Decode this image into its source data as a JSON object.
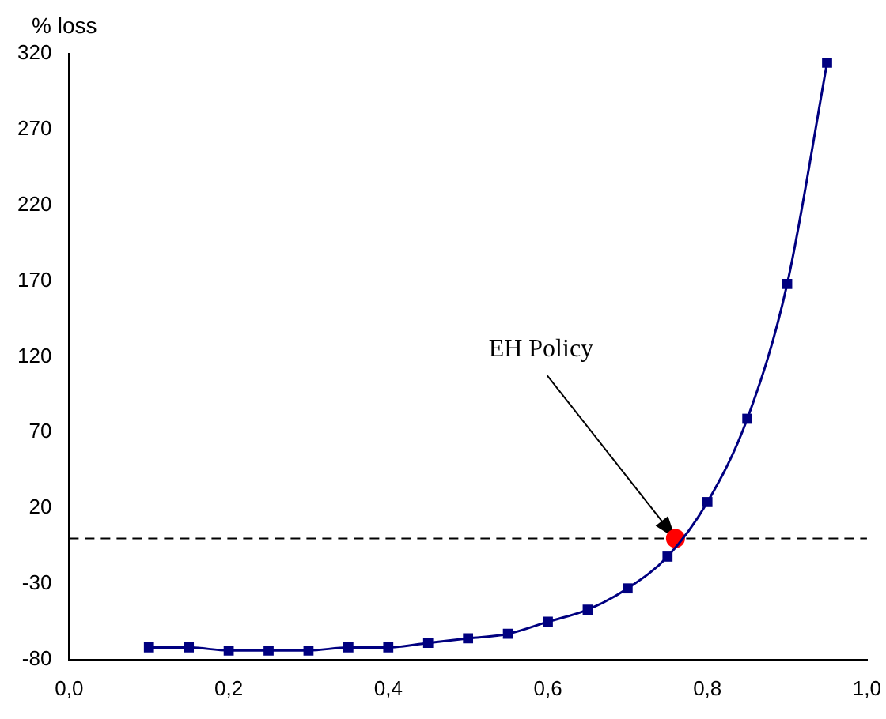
{
  "chart_data": {
    "type": "line",
    "ylabel": "% loss",
    "x": [
      0.1,
      0.15,
      0.2,
      0.25,
      0.3,
      0.35,
      0.4,
      0.45,
      0.5,
      0.55,
      0.6,
      0.65,
      0.7,
      0.75,
      0.8,
      0.85,
      0.9,
      0.95
    ],
    "series": [
      {
        "type": "line",
        "color": "#000080",
        "marker": "square",
        "values": [
          -72,
          -72,
          -74,
          -74,
          -74,
          -72,
          -72,
          -69,
          -66,
          -63,
          -55,
          -47,
          -33,
          -12,
          24,
          79,
          168,
          314
        ]
      },
      {
        "type": "scatter",
        "color": "#ff0000",
        "marker": "circle",
        "x": [
          0.76
        ],
        "values": [
          0
        ]
      }
    ],
    "xlim": [
      0,
      1
    ],
    "xticks": [
      {
        "value": 0,
        "label": "0,0"
      },
      {
        "value": 0.2,
        "label": "0,2"
      },
      {
        "value": 0.4,
        "label": "0,4"
      },
      {
        "value": 0.6,
        "label": "0,6"
      },
      {
        "value": 0.8,
        "label": "0,8"
      },
      {
        "value": 1,
        "label": "1,0"
      }
    ],
    "ylim": [
      -80,
      320
    ],
    "yticks": [
      -80,
      -30,
      20,
      70,
      120,
      170,
      220,
      270,
      320
    ],
    "ref_lines": [
      {
        "axis": "y",
        "value": 0,
        "color": "#000000",
        "line_style": "dashed"
      }
    ],
    "annotations": [
      {
        "text": "EH Policy",
        "x": 0.76,
        "y": 0
      }
    ],
    "grid": false,
    "legend": false
  }
}
